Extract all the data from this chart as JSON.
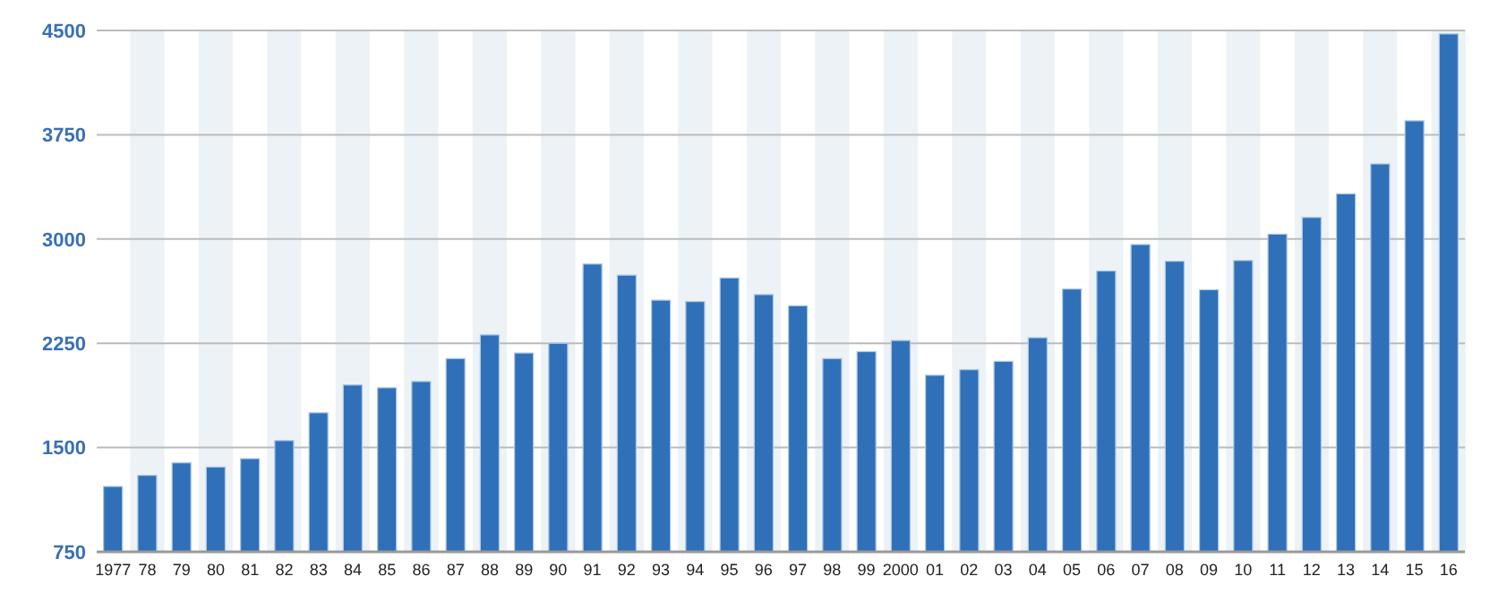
{
  "chart_data": {
    "type": "bar",
    "categories": [
      "1977",
      "78",
      "79",
      "80",
      "81",
      "82",
      "83",
      "84",
      "85",
      "86",
      "87",
      "88",
      "89",
      "90",
      "91",
      "92",
      "93",
      "94",
      "95",
      "96",
      "97",
      "98",
      "99",
      "2000",
      "01",
      "02",
      "03",
      "04",
      "05",
      "06",
      "07",
      "08",
      "09",
      "10",
      "11",
      "12",
      "13",
      "14",
      "15",
      "16"
    ],
    "values": [
      1220,
      1300,
      1390,
      1360,
      1420,
      1550,
      1750,
      1950,
      1930,
      1975,
      2140,
      2310,
      2180,
      2250,
      2820,
      2740,
      2560,
      2550,
      2720,
      2600,
      2520,
      2140,
      2190,
      2270,
      2020,
      2060,
      2120,
      2290,
      2640,
      2770,
      2960,
      2840,
      2635,
      2845,
      3035,
      3155,
      3325,
      3540,
      3850,
      4475
    ],
    "color": "#3070b8",
    "ylim": [
      750,
      4500
    ],
    "yticks": [
      750,
      1500,
      2250,
      3000,
      3750,
      4500
    ],
    "grid": "y"
  }
}
